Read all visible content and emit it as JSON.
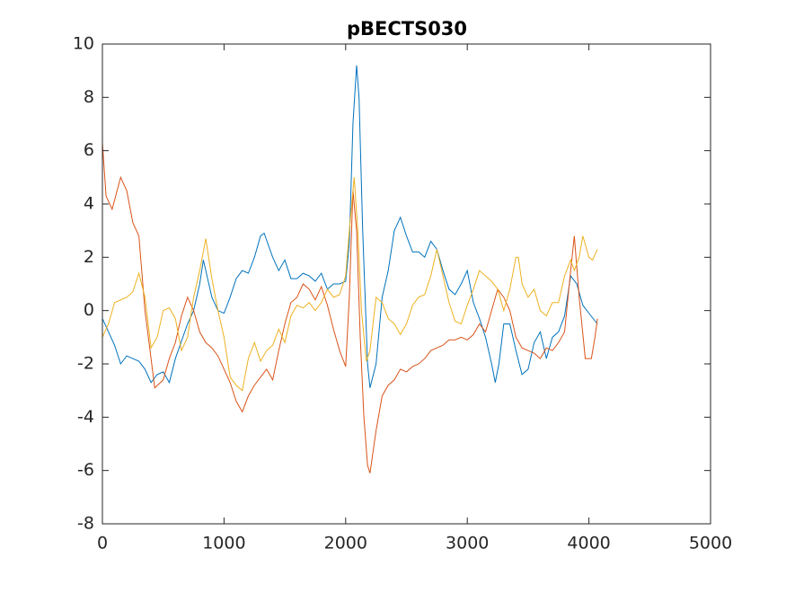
{
  "chart_data": {
    "type": "line",
    "title": "pBECTS030",
    "xlim": [
      0,
      5000
    ],
    "xticks": [
      0,
      1000,
      2000,
      3000,
      4000,
      5000
    ],
    "ylim": [
      -8,
      10
    ],
    "yticks": [
      -8,
      -6,
      -4,
      -2,
      0,
      2,
      4,
      6,
      8,
      10
    ],
    "series": [
      {
        "color": "#0072bd",
        "x": [
          0,
          100,
          150,
          200,
          300,
          350,
          400,
          450,
          500,
          550,
          600,
          700,
          750,
          800,
          830,
          900,
          950,
          1000,
          1050,
          1100,
          1150,
          1200,
          1250,
          1300,
          1330,
          1400,
          1450,
          1500,
          1550,
          1600,
          1650,
          1700,
          1750,
          1800,
          1850,
          1900,
          1950,
          2000,
          2030,
          2060,
          2090,
          2110,
          2140,
          2180,
          2200,
          2250,
          2300,
          2350,
          2400,
          2450,
          2500,
          2550,
          2600,
          2650,
          2700,
          2750,
          2800,
          2850,
          2900,
          2950,
          3000,
          3050,
          3100,
          3150,
          3200,
          3230,
          3260,
          3300,
          3350,
          3400,
          3450,
          3500,
          3550,
          3600,
          3650,
          3700,
          3750,
          3800,
          3850,
          3900,
          3950,
          4000,
          4070
        ],
        "values": [
          -0.3,
          -1.3,
          -2.0,
          -1.7,
          -1.9,
          -2.2,
          -2.7,
          -2.4,
          -2.3,
          -2.7,
          -1.8,
          -0.5,
          0.0,
          1.0,
          1.9,
          0.5,
          0.0,
          -0.1,
          0.5,
          1.2,
          1.5,
          1.4,
          2.0,
          2.8,
          2.9,
          2.0,
          1.5,
          1.9,
          1.2,
          1.2,
          1.4,
          1.3,
          1.1,
          1.4,
          0.8,
          1.0,
          1.0,
          1.1,
          2.5,
          7,
          9.2,
          8.0,
          3,
          -2,
          -2.9,
          -2.0,
          0.5,
          1.5,
          3.0,
          3.5,
          2.8,
          2.2,
          2.2,
          2.0,
          2.6,
          2.3,
          1.5,
          0.8,
          0.6,
          1.0,
          1.5,
          0.3,
          -0.3,
          -1.0,
          -2.0,
          -2.7,
          -2.0,
          -0.5,
          -0.5,
          -1.5,
          -2.4,
          -2.2,
          -1.2,
          -0.8,
          -1.8,
          -1.0,
          -0.8,
          -0.2,
          1.3,
          1.0,
          0.2,
          -0.1,
          -0.5
        ]
      },
      {
        "color": "#d95319",
        "x": [
          0,
          30,
          80,
          150,
          200,
          250,
          300,
          350,
          400,
          430,
          500,
          550,
          600,
          650,
          700,
          750,
          800,
          850,
          900,
          950,
          1000,
          1050,
          1100,
          1150,
          1200,
          1250,
          1300,
          1350,
          1400,
          1450,
          1500,
          1550,
          1600,
          1650,
          1700,
          1750,
          1800,
          1850,
          1900,
          1950,
          2000,
          2030,
          2060,
          2090,
          2120,
          2150,
          2180,
          2200,
          2250,
          2300,
          2350,
          2400,
          2450,
          2500,
          2550,
          2600,
          2650,
          2700,
          2750,
          2800,
          2850,
          2900,
          2950,
          3000,
          3050,
          3100,
          3150,
          3200,
          3250,
          3300,
          3350,
          3400,
          3450,
          3500,
          3550,
          3600,
          3650,
          3700,
          3750,
          3800,
          3850,
          3880,
          3920,
          3970,
          4020,
          4050,
          4070
        ],
        "values": [
          6.3,
          4.3,
          3.8,
          5.0,
          4.5,
          3.3,
          2.8,
          0.0,
          -1.8,
          -2.9,
          -2.6,
          -1.8,
          -1.2,
          -0.2,
          0.5,
          0.0,
          -0.8,
          -1.2,
          -1.4,
          -1.7,
          -2.2,
          -2.7,
          -3.4,
          -3.8,
          -3.2,
          -2.8,
          -2.5,
          -2.2,
          -2.6,
          -1.5,
          -0.5,
          0.3,
          0.5,
          1.0,
          0.8,
          0.4,
          0.9,
          0.2,
          -0.7,
          -1.5,
          -2.1,
          0.5,
          4.5,
          3,
          -1,
          -4,
          -5.8,
          -6.1,
          -4.5,
          -3.2,
          -2.8,
          -2.6,
          -2.2,
          -2.3,
          -2.1,
          -2.0,
          -1.8,
          -1.5,
          -1.4,
          -1.3,
          -1.1,
          -1.1,
          -1.0,
          -1.1,
          -0.9,
          -0.5,
          -0.8,
          0.0,
          0.8,
          0.5,
          0.0,
          -1.0,
          -1.4,
          -1.5,
          -1.6,
          -1.8,
          -1.4,
          -1.5,
          -1.2,
          -0.8,
          1.5,
          2.8,
          0.5,
          -1.8,
          -1.8,
          -1.0,
          -0.3
        ]
      },
      {
        "color": "#edb120",
        "x": [
          0,
          50,
          100,
          150,
          200,
          250,
          300,
          350,
          400,
          450,
          500,
          550,
          600,
          650,
          700,
          750,
          800,
          850,
          900,
          950,
          1000,
          1050,
          1100,
          1150,
          1200,
          1250,
          1300,
          1350,
          1400,
          1450,
          1500,
          1550,
          1600,
          1650,
          1700,
          1750,
          1800,
          1850,
          1900,
          1950,
          2000,
          2030,
          2070,
          2100,
          2130,
          2170,
          2200,
          2250,
          2300,
          2350,
          2400,
          2450,
          2500,
          2550,
          2600,
          2650,
          2700,
          2750,
          2800,
          2850,
          2900,
          2950,
          3000,
          3050,
          3100,
          3150,
          3200,
          3250,
          3300,
          3350,
          3400,
          3420,
          3450,
          3500,
          3550,
          3600,
          3650,
          3700,
          3750,
          3800,
          3850,
          3880,
          3920,
          3950,
          4000,
          4030,
          4070
        ],
        "values": [
          -1.0,
          -0.5,
          0.3,
          0.4,
          0.5,
          0.7,
          1.4,
          0.5,
          -1.4,
          -1.0,
          0.0,
          0.1,
          -0.3,
          -1.5,
          -1.0,
          0.5,
          1.5,
          2.7,
          1.2,
          0.0,
          -1.0,
          -2.5,
          -2.8,
          -3.0,
          -1.8,
          -1.2,
          -1.9,
          -1.5,
          -1.3,
          -0.7,
          -1.2,
          -0.2,
          0.2,
          0.1,
          0.3,
          0.0,
          0.3,
          0.8,
          0.5,
          0.6,
          1.3,
          3,
          5,
          3,
          0,
          -1.9,
          -1.5,
          0.5,
          0.3,
          -0.3,
          -0.5,
          -0.9,
          -0.5,
          0.2,
          0.5,
          0.6,
          1.3,
          2.3,
          1.3,
          0.3,
          -0.4,
          -0.5,
          0.2,
          0.8,
          1.5,
          1.3,
          1.1,
          0.8,
          0.0,
          0.8,
          2.0,
          2.0,
          1.0,
          0.5,
          0.8,
          0.0,
          -0.2,
          0.3,
          0.3,
          1.3,
          1.9,
          1.5,
          2.0,
          2.8,
          2.0,
          1.9,
          2.3
        ]
      }
    ]
  }
}
